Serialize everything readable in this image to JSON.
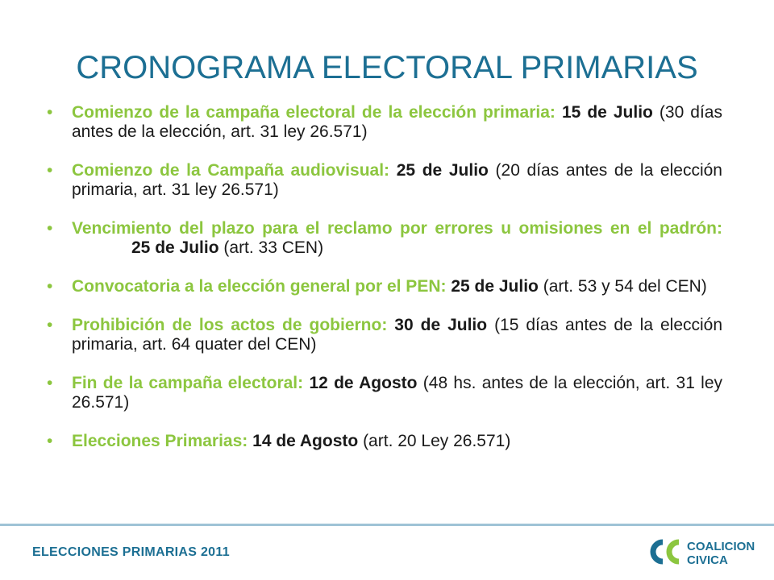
{
  "title": "CRONOGRAMA ELECTORAL PRIMARIAS",
  "items": [
    {
      "label": "Comienzo de la campaña electoral de la elección primaria:",
      "date": "15 de Julio",
      "note": "(30 días antes de la elección, art. 31 ley 26.571)"
    },
    {
      "label": "Comienzo de la Campaña audiovisual:",
      "date": "25 de Julio",
      "note": "(20 días antes de la elección primaria, art. 31 ley 26.571)"
    },
    {
      "label": "Vencimiento del plazo para el reclamo por errores u omisiones en el padrón:",
      "date": "25 de Julio",
      "note": "(art. 33 CEN)"
    },
    {
      "label": "Convocatoria a la elección general por el PEN:",
      "date": "25 de Julio",
      "note": "(art. 53 y 54 del CEN)"
    },
    {
      "label": "Prohibición de los actos de gobierno:",
      "date": "30 de Julio",
      "note": "(15 días antes de la elección primaria, art. 64 quater del CEN)"
    },
    {
      "label": "Fin de la campaña electoral:",
      "date": "12 de Agosto",
      "note": "(48 hs. antes de la elección, art. 31 ley 26.571)"
    },
    {
      "label": "Elecciones Primarias:",
      "date": "14 de Agosto",
      "note": "(art. 20 Ley 26.571)"
    }
  ],
  "footer": {
    "text": "ELECCIONES PRIMARIAS 2011"
  },
  "logo": {
    "line1": "COALICION",
    "line2": "CIVICA"
  },
  "colors": {
    "title": "#1c6f93",
    "label": "#8cc63f",
    "body": "#1a1a1a",
    "footer_line": "#9fc3d6"
  }
}
